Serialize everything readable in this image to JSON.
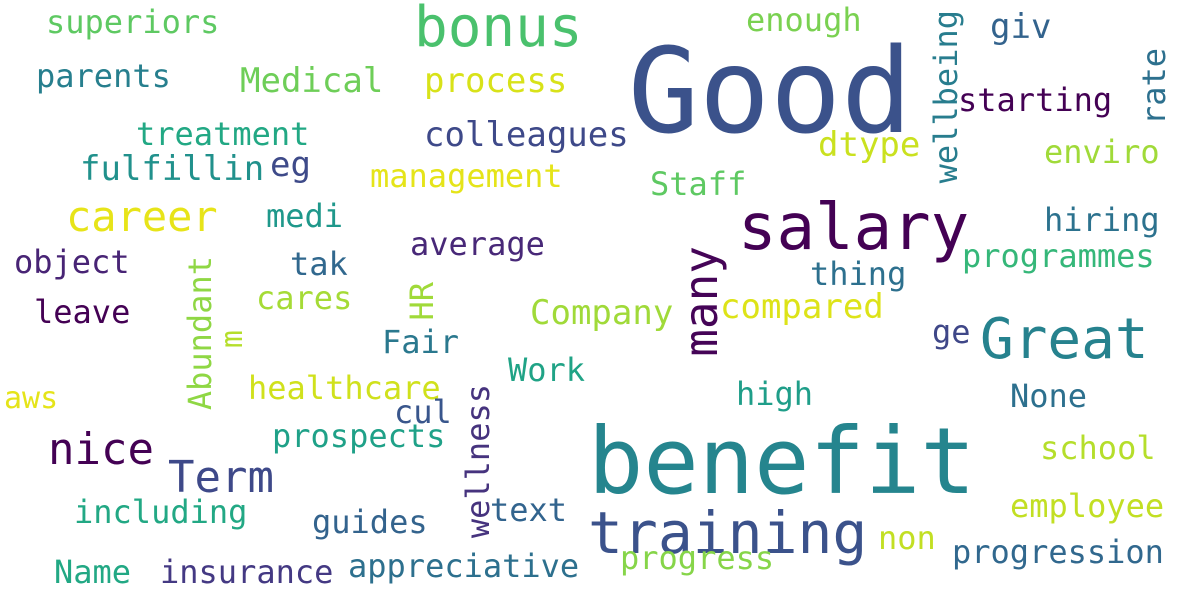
{
  "background": "#ffffff",
  "words": [
    {
      "text": "superiors",
      "color": "#5ec962"
    },
    {
      "text": "bonus",
      "color": "#4ac16d"
    },
    {
      "text": "enough",
      "color": "#7ad151"
    },
    {
      "text": "Good",
      "color": "#3b528b"
    },
    {
      "text": "giv",
      "color": "#33638d"
    },
    {
      "text": "wellbeing",
      "color": "#287d8e"
    },
    {
      "text": "rate",
      "color": "#2d708e"
    },
    {
      "text": "parents",
      "color": "#277f8e"
    },
    {
      "text": "Medical",
      "color": "#6ece58"
    },
    {
      "text": "process",
      "color": "#d8e219"
    },
    {
      "text": "starting",
      "color": "#440154"
    },
    {
      "text": "treatment",
      "color": "#22a884"
    },
    {
      "text": "colleagues",
      "color": "#3e4989"
    },
    {
      "text": "dtype",
      "color": "#cae11f"
    },
    {
      "text": "enviro",
      "color": "#a0da39"
    },
    {
      "text": "fulfillin",
      "color": "#21918c"
    },
    {
      "text": "eg",
      "color": "#3e4a89"
    },
    {
      "text": "management",
      "color": "#e5e419"
    },
    {
      "text": "Staff",
      "color": "#5ec962"
    },
    {
      "text": "career",
      "color": "#e7e419"
    },
    {
      "text": "medi",
      "color": "#1f988b"
    },
    {
      "text": "salary",
      "color": "#440154"
    },
    {
      "text": "hiring",
      "color": "#2c728e"
    },
    {
      "text": "object",
      "color": "#482475"
    },
    {
      "text": "tak",
      "color": "#31688e"
    },
    {
      "text": "average",
      "color": "#482878"
    },
    {
      "text": "many",
      "color": "#450457"
    },
    {
      "text": "programmes",
      "color": "#35b779"
    },
    {
      "text": "thing",
      "color": "#2d708e"
    },
    {
      "text": "leave",
      "color": "#440154"
    },
    {
      "text": "Abundant",
      "color": "#8fd744"
    },
    {
      "text": "cares",
      "color": "#a5db36"
    },
    {
      "text": "HR",
      "color": "#a0da39"
    },
    {
      "text": "Company",
      "color": "#a0da39"
    },
    {
      "text": "compared",
      "color": "#dde318"
    },
    {
      "text": "ge",
      "color": "#3f4788"
    },
    {
      "text": "Great",
      "color": "#26828e"
    },
    {
      "text": "m",
      "color": "#b5de2b"
    },
    {
      "text": "Fair",
      "color": "#2a788e"
    },
    {
      "text": "Work",
      "color": "#20a386"
    },
    {
      "text": "healthcare",
      "color": "#d0e11c"
    },
    {
      "text": "high",
      "color": "#1f9e89"
    },
    {
      "text": "None",
      "color": "#2d708e"
    },
    {
      "text": "aws",
      "color": "#e5e419"
    },
    {
      "text": "cul",
      "color": "#39568c"
    },
    {
      "text": "nice",
      "color": "#440154"
    },
    {
      "text": "prospects",
      "color": "#1fa188"
    },
    {
      "text": "wellness",
      "color": "#46337e"
    },
    {
      "text": "benefit",
      "color": "#25858e"
    },
    {
      "text": "school",
      "color": "#b5de2b"
    },
    {
      "text": "Term",
      "color": "#3e4989"
    },
    {
      "text": "text",
      "color": "#32648e"
    },
    {
      "text": "employee",
      "color": "#c2df23"
    },
    {
      "text": "including",
      "color": "#22a884"
    },
    {
      "text": "guides",
      "color": "#33638d"
    },
    {
      "text": "training",
      "color": "#3b528b"
    },
    {
      "text": "non",
      "color": "#c2df23"
    },
    {
      "text": "progression",
      "color": "#31688e"
    },
    {
      "text": "Name",
      "color": "#22a884"
    },
    {
      "text": "insurance",
      "color": "#443983"
    },
    {
      "text": "appreciative",
      "color": "#2d708e"
    },
    {
      "text": "progress",
      "color": "#86d549"
    }
  ]
}
